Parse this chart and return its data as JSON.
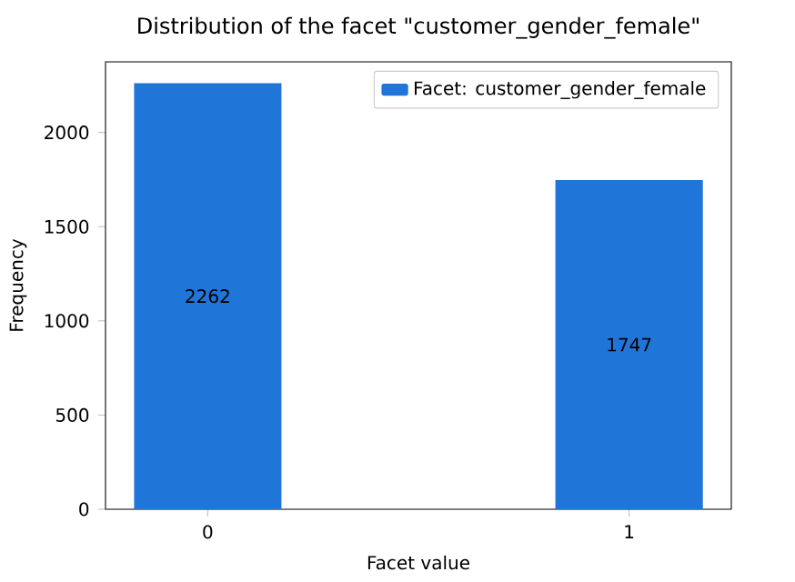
{
  "chart_data": {
    "type": "bar",
    "title": "Distribution of the facet \"customer_gender_female\"",
    "xlabel": "Facet value",
    "ylabel": "Frequency",
    "categories": [
      "0",
      "1"
    ],
    "series": [
      {
        "name": "Facet: customer_gender_female",
        "color": "#1f75d8",
        "values": [
          2262,
          1747
        ]
      }
    ],
    "ylim": [
      0,
      2375
    ],
    "yticks": [
      0,
      500,
      1000,
      1500,
      2000
    ],
    "data_labels": true,
    "legend": "top right",
    "grid": false
  }
}
